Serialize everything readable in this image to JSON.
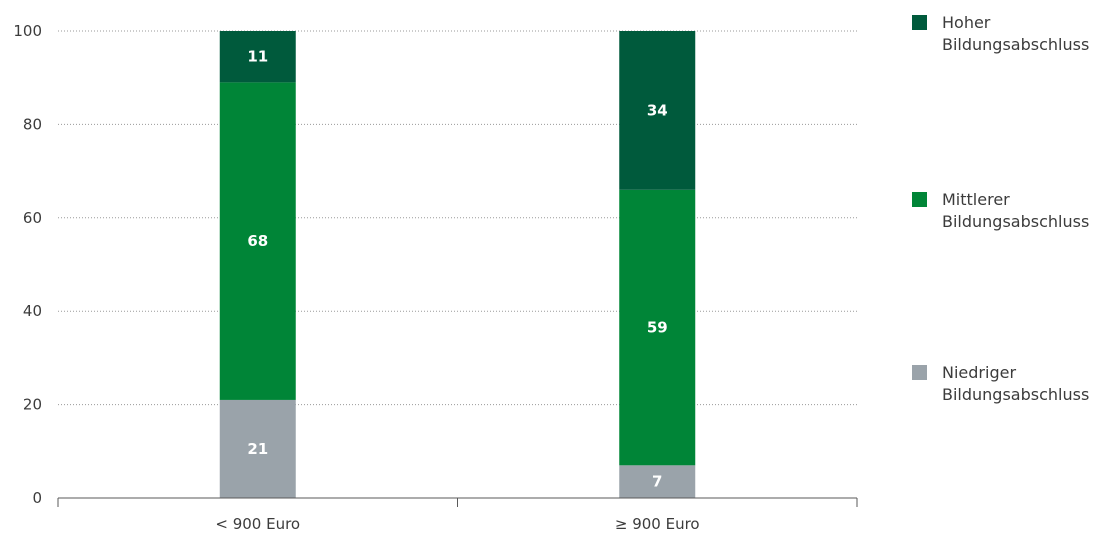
{
  "chart_data": {
    "type": "bar",
    "stacked": true,
    "categories": [
      "< 900 Euro",
      "≥ 900 Euro"
    ],
    "series": [
      {
        "name": "Niedriger Bildungsabschluss",
        "values": [
          21,
          7
        ],
        "color": "#9aa3aa"
      },
      {
        "name": "Mittlerer Bildungsabschluss",
        "values": [
          68,
          59
        ],
        "color": "#008537"
      },
      {
        "name": "Hoher Bildungsabschluss",
        "values": [
          11,
          34
        ],
        "color": "#005a3c"
      }
    ],
    "yticks": [
      0,
      20,
      40,
      60,
      80,
      100
    ],
    "ylim": [
      0,
      100
    ],
    "grid": true,
    "legend_position": "right",
    "title": "",
    "xlabel": "",
    "ylabel": ""
  },
  "legend": [
    {
      "line1": "Hoher",
      "line2": "Bildungsabschluss",
      "color": "#005a3c"
    },
    {
      "line1": "Mittlerer",
      "line2": "Bildungsabschluss",
      "color": "#008537"
    },
    {
      "line1": "Niedriger",
      "line2": "Bildungsabschluss",
      "color": "#9aa3aa"
    }
  ]
}
